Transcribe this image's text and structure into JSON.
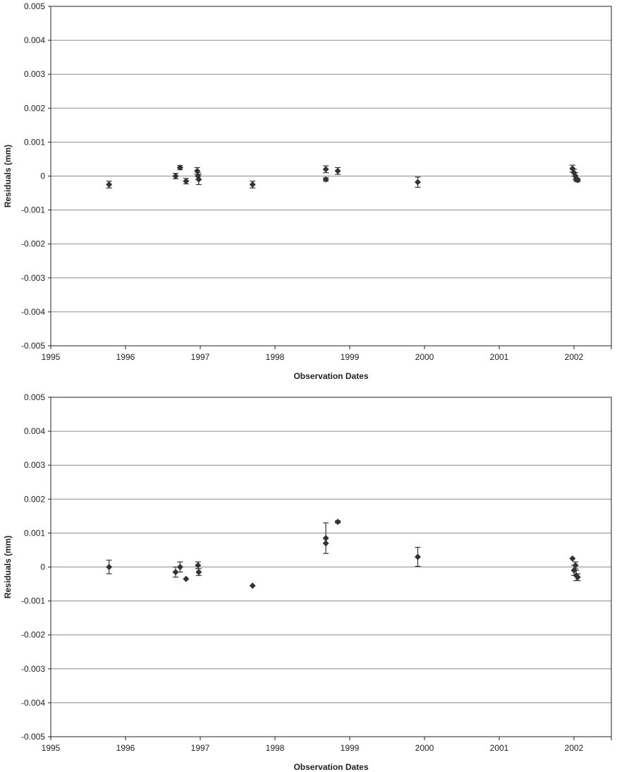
{
  "chart_data": [
    {
      "type": "scatter",
      "title": "",
      "xlabel": "Observation Dates",
      "ylabel": "Residuals (mm)",
      "xlim": [
        1995,
        2002.5
      ],
      "ylim": [
        -0.005,
        0.005
      ],
      "x_ticks": [
        "1995",
        "1996",
        "1997",
        "1998",
        "1999",
        "2000",
        "2001",
        "2002"
      ],
      "y_ticks": [
        "-0.005",
        "-0.004",
        "-0.003",
        "-0.002",
        "-0.001",
        "0",
        "0.001",
        "0.002",
        "0.003",
        "0.004",
        "0.005"
      ],
      "grid": true,
      "legend": "none",
      "points": [
        {
          "x": 1995.78,
          "y": -0.00025,
          "err": 0.0001
        },
        {
          "x": 1996.67,
          "y": 0.0,
          "err": 8e-05
        },
        {
          "x": 1996.73,
          "y": 0.00025,
          "err": 6e-05
        },
        {
          "x": 1996.81,
          "y": -0.00015,
          "err": 8e-05
        },
        {
          "x": 1996.96,
          "y": 0.00015,
          "err": 0.0001
        },
        {
          "x": 1996.97,
          "y": 0.0,
          "err": 0.0001
        },
        {
          "x": 1996.98,
          "y": -0.0001,
          "err": 0.00015
        },
        {
          "x": 1997.7,
          "y": -0.00025,
          "err": 0.0001
        },
        {
          "x": 1998.68,
          "y": 0.0002,
          "err": 0.0001
        },
        {
          "x": 1998.68,
          "y": -0.0001,
          "err": 5e-05
        },
        {
          "x": 1998.84,
          "y": 0.00015,
          "err": 0.0001
        },
        {
          "x": 1999.91,
          "y": -0.00018,
          "err": 0.00015
        },
        {
          "x": 2001.98,
          "y": 0.00022,
          "err": 0.0001
        },
        {
          "x": 2002.0,
          "y": 0.0001,
          "err": 0.0001
        },
        {
          "x": 2002.02,
          "y": 0.0,
          "err": 0.0001
        },
        {
          "x": 2002.03,
          "y": -0.0001,
          "err": 5e-05
        },
        {
          "x": 2002.05,
          "y": -0.00012,
          "err": 5e-05
        }
      ]
    },
    {
      "type": "scatter",
      "title": "",
      "xlabel": "Observation Dates",
      "ylabel": "Residuals (mm)",
      "xlim": [
        1995,
        2002.5
      ],
      "ylim": [
        -0.005,
        0.005
      ],
      "x_ticks": [
        "1995",
        "1996",
        "1997",
        "1998",
        "1999",
        "2000",
        "2001",
        "2002"
      ],
      "y_ticks": [
        "-0.005",
        "-0.004",
        "-0.003",
        "-0.002",
        "-0.001",
        "0",
        "0.001",
        "0.002",
        "0.003",
        "0.004",
        "0.005"
      ],
      "grid": true,
      "legend": "none",
      "points": [
        {
          "x": 1995.78,
          "y": 0.0,
          "err": 0.0002
        },
        {
          "x": 1996.67,
          "y": -0.00015,
          "err": 0.00015
        },
        {
          "x": 1996.73,
          "y": 0.0,
          "err": 0.00015
        },
        {
          "x": 1996.81,
          "y": -0.00035,
          "err": 0
        },
        {
          "x": 1996.97,
          "y": 5e-05,
          "err": 0.0001
        },
        {
          "x": 1996.98,
          "y": -0.00015,
          "err": 0.0001
        },
        {
          "x": 1997.7,
          "y": -0.00055,
          "err": 0
        },
        {
          "x": 1998.68,
          "y": 0.00085,
          "err": 0.00045
        },
        {
          "x": 1998.68,
          "y": 0.0007,
          "err": 0
        },
        {
          "x": 1998.84,
          "y": 0.00133,
          "err": 3e-05
        },
        {
          "x": 1999.91,
          "y": 0.0003,
          "err": 0.00028
        },
        {
          "x": 2001.98,
          "y": 0.00025,
          "err": 0
        },
        {
          "x": 2002.0,
          "y": -0.0001,
          "err": 0.00015
        },
        {
          "x": 2002.02,
          "y": 5e-05,
          "err": 0.0001
        },
        {
          "x": 2002.03,
          "y": -0.00025,
          "err": 0.00015
        },
        {
          "x": 2002.05,
          "y": -0.0003,
          "err": 0.0001
        }
      ]
    }
  ]
}
